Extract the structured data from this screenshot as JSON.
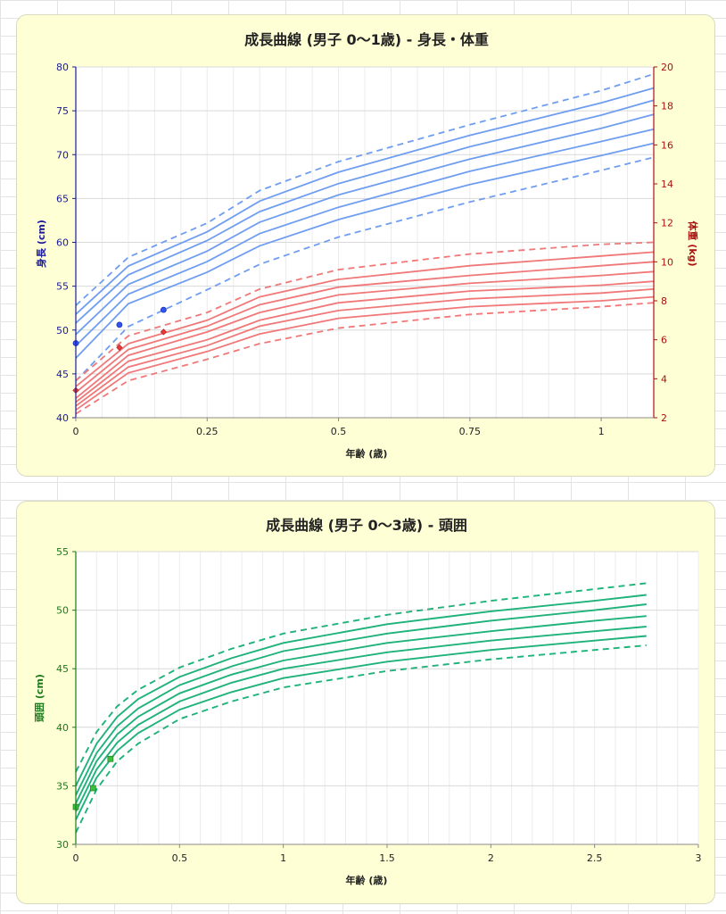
{
  "chart_data": [
    {
      "type": "line",
      "title": "成長曲線 (男子 0〜1歳) - 身長・体重",
      "xlabel": "年齢 (歳)",
      "ylabel": "身長 (cm)",
      "y2label": "体重 (kg)",
      "xlim": [
        0,
        1.1
      ],
      "ylim": [
        40,
        80
      ],
      "y2lim": [
        2,
        20
      ],
      "xticks": [
        0,
        0.25,
        0.5,
        0.75,
        1
      ],
      "xtick_labels": [
        "0",
        "0.25",
        "0.5",
        "0.75",
        "1"
      ],
      "yticks": [
        40,
        45,
        50,
        55,
        60,
        65,
        70,
        75,
        80
      ],
      "y2ticks": [
        2,
        4,
        6,
        8,
        10,
        12,
        14,
        16,
        18,
        20
      ],
      "grid": true,
      "colors": {
        "height": "#6f9ef0",
        "weight": "#f07878",
        "height_axis": "#1a1a99",
        "weight_axis": "#aa1111",
        "height_marker": "#3355ee",
        "weight_marker": "#e83a3a"
      },
      "x": [
        0,
        0.1,
        0.25,
        0.35,
        0.5,
        0.75,
        1.0,
        1.1
      ],
      "height_series": [
        {
          "dashed": true,
          "values": [
            52.8,
            58.3,
            62.2,
            65.9,
            69.2,
            73.4,
            77.3,
            79.2
          ]
        },
        {
          "dashed": false,
          "values": [
            51.8,
            57.3,
            61.2,
            64.7,
            68.0,
            72.2,
            75.9,
            77.6
          ]
        },
        {
          "dashed": false,
          "values": [
            50.8,
            56.3,
            60.2,
            63.5,
            66.7,
            70.9,
            74.5,
            76.2
          ]
        },
        {
          "dashed": false,
          "values": [
            49.5,
            55.2,
            59.0,
            62.3,
            65.4,
            69.5,
            73.0,
            74.6
          ]
        },
        {
          "dashed": false,
          "values": [
            48.2,
            54.1,
            57.8,
            61.0,
            64.0,
            68.1,
            71.5,
            72.9
          ]
        },
        {
          "dashed": false,
          "values": [
            46.8,
            53.0,
            56.6,
            59.6,
            62.6,
            66.6,
            69.9,
            71.3
          ]
        },
        {
          "dashed": true,
          "values": [
            44.2,
            50.4,
            54.6,
            57.5,
            60.6,
            64.6,
            68.2,
            69.7
          ]
        }
      ],
      "weight_series": [
        {
          "dashed": true,
          "values": [
            3.9,
            6.2,
            7.4,
            8.6,
            9.6,
            10.4,
            10.9,
            11.0
          ]
        },
        {
          "dashed": false,
          "values": [
            3.6,
            5.8,
            7.0,
            8.2,
            9.1,
            9.8,
            10.3,
            10.5
          ]
        },
        {
          "dashed": false,
          "values": [
            3.3,
            5.5,
            6.7,
            7.8,
            8.7,
            9.3,
            9.8,
            10.0
          ]
        },
        {
          "dashed": false,
          "values": [
            3.0,
            5.2,
            6.4,
            7.4,
            8.3,
            8.9,
            9.3,
            9.5
          ]
        },
        {
          "dashed": false,
          "values": [
            2.8,
            4.9,
            6.0,
            7.0,
            7.9,
            8.5,
            8.8,
            9.0
          ]
        },
        {
          "dashed": false,
          "values": [
            2.6,
            4.6,
            5.7,
            6.7,
            7.5,
            8.1,
            8.4,
            8.6
          ]
        },
        {
          "dashed": false,
          "values": [
            2.4,
            4.3,
            5.4,
            6.3,
            7.1,
            7.7,
            8.0,
            8.2
          ]
        },
        {
          "dashed": true,
          "values": [
            2.2,
            3.9,
            5.0,
            5.8,
            6.6,
            7.3,
            7.7,
            7.9
          ]
        }
      ],
      "height_points": {
        "x": [
          0,
          0.083,
          0.167
        ],
        "y": [
          48.5,
          50.6,
          52.3
        ]
      },
      "weight_points": {
        "x": [
          0,
          0.083,
          0.167
        ],
        "y": [
          3.4,
          5.6,
          6.4
        ]
      }
    },
    {
      "type": "line",
      "title": "成長曲線 (男子 0〜3歳) - 頭囲",
      "xlabel": "年齢 (歳)",
      "ylabel": "頭囲 (cm)",
      "xlim": [
        0,
        3
      ],
      "ylim": [
        30,
        55
      ],
      "xticks": [
        0,
        0.5,
        1,
        1.5,
        2,
        2.5,
        3
      ],
      "xtick_labels": [
        "0",
        "0.5",
        "1",
        "1.5",
        "2",
        "2.5",
        "3"
      ],
      "yticks": [
        30,
        35,
        40,
        45,
        50,
        55
      ],
      "grid": true,
      "colors": {
        "line": "#1fb27a",
        "axis": "#1a7a1a",
        "marker": "#3cbf3c"
      },
      "x": [
        0,
        0.1,
        0.2,
        0.3,
        0.5,
        0.75,
        1.0,
        1.5,
        2.0,
        2.5,
        2.75
      ],
      "series": [
        {
          "dashed": true,
          "values": [
            36.2,
            39.6,
            41.8,
            43.2,
            45.1,
            46.7,
            48.0,
            49.6,
            50.8,
            51.8,
            52.3
          ]
        },
        {
          "dashed": false,
          "values": [
            35.0,
            38.6,
            40.9,
            42.4,
            44.3,
            45.9,
            47.2,
            48.8,
            49.9,
            50.8,
            51.3
          ]
        },
        {
          "dashed": false,
          "values": [
            34.2,
            37.8,
            40.1,
            41.6,
            43.6,
            45.2,
            46.5,
            48.0,
            49.1,
            50.0,
            50.5
          ]
        },
        {
          "dashed": false,
          "values": [
            33.5,
            37.1,
            39.4,
            40.9,
            42.9,
            44.5,
            45.7,
            47.2,
            48.2,
            49.1,
            49.5
          ]
        },
        {
          "dashed": false,
          "values": [
            32.8,
            36.4,
            38.7,
            40.2,
            42.2,
            43.8,
            45.0,
            46.4,
            47.4,
            48.2,
            48.6
          ]
        },
        {
          "dashed": false,
          "values": [
            32.1,
            35.7,
            38.0,
            39.5,
            41.5,
            43.0,
            44.2,
            45.6,
            46.6,
            47.4,
            47.8
          ]
        },
        {
          "dashed": true,
          "values": [
            31.0,
            34.7,
            37.1,
            38.6,
            40.7,
            42.2,
            43.4,
            44.8,
            45.8,
            46.6,
            47.0
          ]
        }
      ],
      "points": {
        "x": [
          0,
          0.083,
          0.167
        ],
        "y": [
          33.2,
          34.8,
          37.3
        ]
      }
    }
  ]
}
